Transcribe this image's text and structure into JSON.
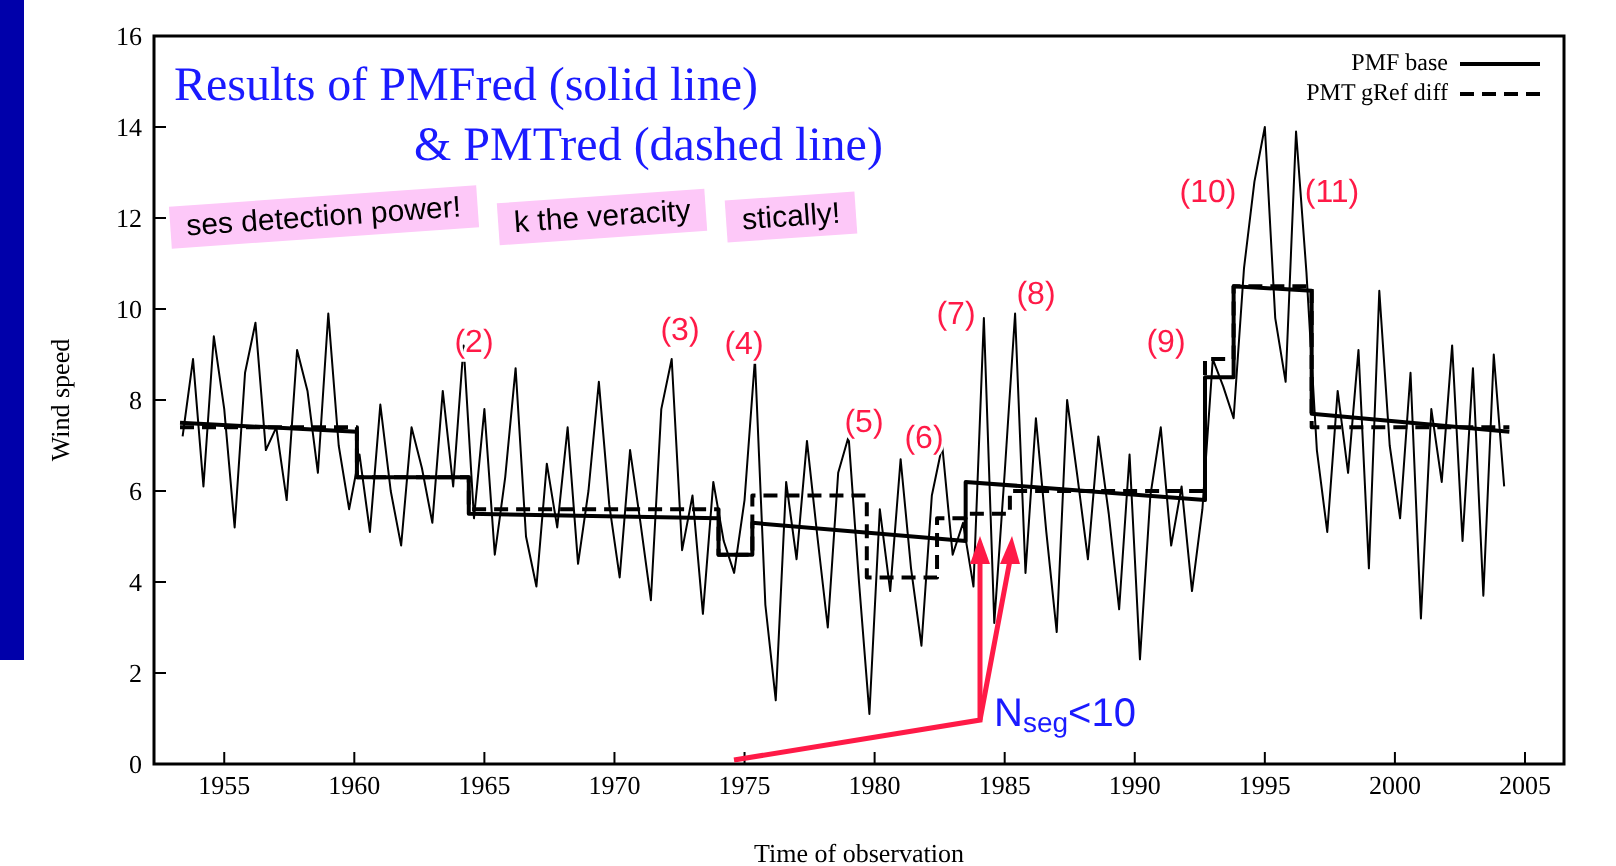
{
  "chart_data": {
    "type": "line",
    "title": "Results of PMFred (solid line)",
    "subtitle": "& PMTred (dashed line)",
    "xlabel": "Time of observation",
    "ylabel": "Wind speed",
    "xlim": [
      1952.3,
      2006.5
    ],
    "xticks": [
      1955,
      1960,
      1965,
      1970,
      1975,
      1980,
      1985,
      1990,
      1995,
      2000,
      2005
    ],
    "ylim": [
      0,
      16
    ],
    "yticks": [
      0,
      2,
      4,
      6,
      8,
      10,
      12,
      14,
      16
    ],
    "grid": false,
    "legend": "top right",
    "marker": "none",
    "x": [
      1953.4,
      1953.8,
      1954.2,
      1954.6,
      1955.0,
      1955.4,
      1955.8,
      1956.2,
      1956.6,
      1957.0,
      1957.4,
      1957.8,
      1958.2,
      1958.6,
      1959.0,
      1959.4,
      1959.8,
      1960.2,
      1960.6,
      1961.0,
      1961.4,
      1961.8,
      1962.2,
      1962.6,
      1963.0,
      1963.4,
      1963.8,
      1964.2,
      1964.6,
      1965.0,
      1965.4,
      1965.8,
      1966.2,
      1966.6,
      1967.0,
      1967.4,
      1967.8,
      1968.2,
      1968.6,
      1969.0,
      1969.4,
      1969.8,
      1970.2,
      1970.6,
      1971.0,
      1971.4,
      1971.8,
      1972.2,
      1972.6,
      1973.0,
      1973.4,
      1973.8,
      1974.2,
      1974.6,
      1975.0,
      1975.4,
      1975.8,
      1976.2,
      1976.6,
      1977.0,
      1977.4,
      1977.8,
      1978.2,
      1978.6,
      1979.0,
      1979.4,
      1979.8,
      1980.2,
      1980.6,
      1981.0,
      1981.4,
      1981.8,
      1982.2,
      1982.6,
      1983.0,
      1983.4,
      1983.8,
      1984.2,
      1984.6,
      1985.0,
      1985.4,
      1985.8,
      1986.2,
      1986.6,
      1987.0,
      1987.4,
      1987.8,
      1988.2,
      1988.6,
      1989.0,
      1989.4,
      1989.8,
      1990.2,
      1990.6,
      1991.0,
      1991.4,
      1991.8,
      1992.2,
      1992.6,
      1993.0,
      1993.4,
      1993.8,
      1994.2,
      1994.6,
      1995.0,
      1995.4,
      1995.8,
      1996.2,
      1996.6,
      1997.0,
      1997.4,
      1997.8,
      1998.2,
      1998.6,
      1999.0,
      1999.4,
      1999.8,
      2000.2,
      2000.6,
      2001.0,
      2001.4,
      2001.8,
      2002.2,
      2002.6,
      2003.0,
      2003.4,
      2003.8,
      2004.2
    ],
    "series": [
      {
        "color": "#000000",
        "line_style": "solid",
        "values": [
          7.2,
          8.9,
          6.1,
          9.4,
          7.8,
          5.2,
          8.6,
          9.7,
          6.9,
          7.4,
          5.8,
          9.1,
          8.2,
          6.4,
          9.9,
          7.0,
          5.6,
          6.8,
          5.1,
          7.9,
          6.0,
          4.8,
          7.4,
          6.5,
          5.3,
          8.2,
          6.1,
          9.2,
          5.4,
          7.8,
          4.6,
          6.3,
          8.7,
          5.0,
          3.9,
          6.6,
          5.2,
          7.4,
          4.4,
          6.0,
          8.4,
          5.7,
          4.1,
          6.9,
          5.3,
          3.6,
          7.8,
          8.9,
          4.7,
          5.9,
          3.3,
          6.2,
          4.9,
          4.2,
          5.8,
          8.9,
          3.5,
          1.4,
          6.2,
          4.5,
          7.1,
          5.0,
          3.0,
          6.4,
          7.2,
          4.0,
          1.1,
          5.6,
          3.8,
          6.7,
          4.3,
          2.6,
          5.9,
          7.0,
          4.6,
          5.3,
          3.9,
          9.8,
          3.1,
          6.4,
          9.9,
          4.2,
          7.6,
          5.1,
          2.9,
          8.0,
          6.3,
          4.5,
          7.2,
          5.5,
          3.4,
          6.8,
          2.3,
          5.9,
          7.4,
          4.8,
          6.1,
          3.8,
          5.6,
          8.9,
          8.3,
          7.6,
          10.9,
          12.8,
          14.0,
          9.8,
          8.4,
          13.9,
          10.8,
          6.9,
          5.1,
          8.2,
          6.4,
          9.1,
          4.3,
          10.4,
          7.0,
          5.4,
          8.6,
          3.2,
          7.8,
          6.2,
          9.2,
          4.9,
          8.7,
          3.7,
          9.0,
          6.1
        ]
      },
      {
        "name": "PMF base",
        "color": "#000000",
        "line_style": "solid",
        "x": [
          1953.3,
          1960.1,
          1960.1,
          1964.4,
          1964.4,
          1974.0,
          1974.0,
          1975.3,
          1975.3,
          1983.5,
          1983.5,
          1992.7,
          1992.7,
          1993.8,
          1993.8,
          1996.8,
          1996.8,
          2004.4
        ],
        "values": [
          7.5,
          7.3,
          6.3,
          6.3,
          5.5,
          5.4,
          4.6,
          4.6,
          5.3,
          4.9,
          6.2,
          5.8,
          8.5,
          8.5,
          10.5,
          10.4,
          7.7,
          7.3
        ]
      },
      {
        "name": "PMT gRef diff",
        "color": "#000000",
        "line_style": "dashed",
        "x": [
          1953.3,
          1960.1,
          1960.1,
          1964.4,
          1964.4,
          1974.0,
          1974.0,
          1975.3,
          1975.3,
          1979.7,
          1979.7,
          1982.4,
          1982.4,
          1983.5,
          1983.5,
          1985.2,
          1985.2,
          1992.7,
          1992.7,
          1993.8,
          1993.8,
          1996.8,
          1996.8,
          2004.4
        ],
        "values": [
          7.4,
          7.4,
          6.3,
          6.3,
          5.6,
          5.6,
          4.6,
          4.6,
          5.9,
          5.9,
          4.1,
          4.1,
          5.4,
          5.4,
          5.5,
          5.5,
          6.0,
          6.0,
          8.9,
          8.9,
          10.5,
          10.5,
          7.4,
          7.4
        ]
      }
    ],
    "annotations": [
      "ses detection power!",
      "k the veracity",
      "stically!",
      "(2)",
      "(3)",
      "(4)",
      "(5)",
      "(6)",
      "(7)",
      "(8)",
      "(9)",
      "(10)",
      "(11)",
      "N$_{seg}$<10"
    ]
  }
}
